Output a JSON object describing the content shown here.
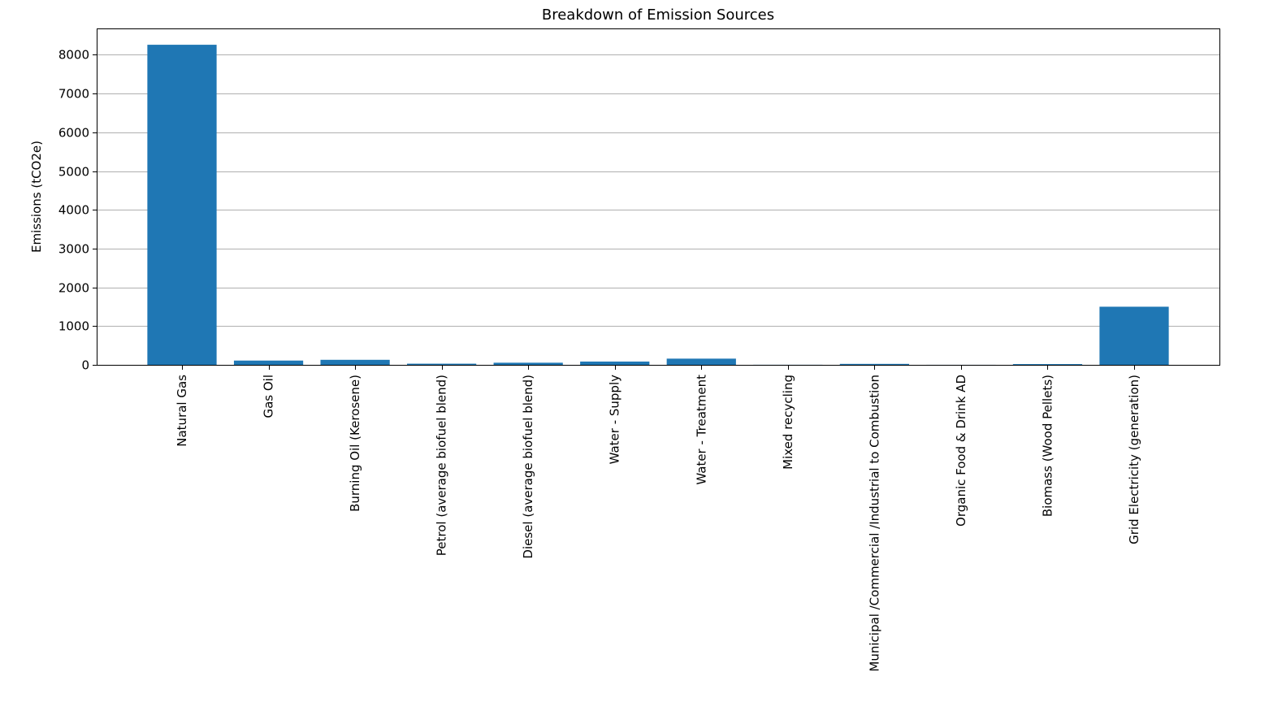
{
  "chart_data": {
    "type": "bar",
    "title": "Breakdown of Emission Sources",
    "xlabel": "",
    "ylabel": "Emissions (tCO2e)",
    "categories": [
      "Natural Gas",
      "Gas Oil",
      "Burning Oil (Kerosene)",
      "Petrol (average biofuel blend)",
      "Diesel (average biofuel blend)",
      "Water - Supply",
      "Water - Treatment",
      "Mixed recycling",
      "Municipal /Commercial /Industrial to Combustion",
      "Organic Food & Drink AD",
      "Biomass (Wood Pellets)",
      "Grid Electricity (generation)"
    ],
    "values": [
      8260,
      110,
      130,
      30,
      55,
      85,
      160,
      2,
      25,
      1,
      20,
      1500
    ],
    "ylim": [
      0,
      8660
    ],
    "yticks": [
      0,
      1000,
      2000,
      3000,
      4000,
      5000,
      6000,
      7000,
      8000
    ],
    "grid": "horizontal",
    "colors": {
      "bar": "#1f77b4",
      "grid": "#b0b0b0",
      "axis": "#000000"
    }
  }
}
